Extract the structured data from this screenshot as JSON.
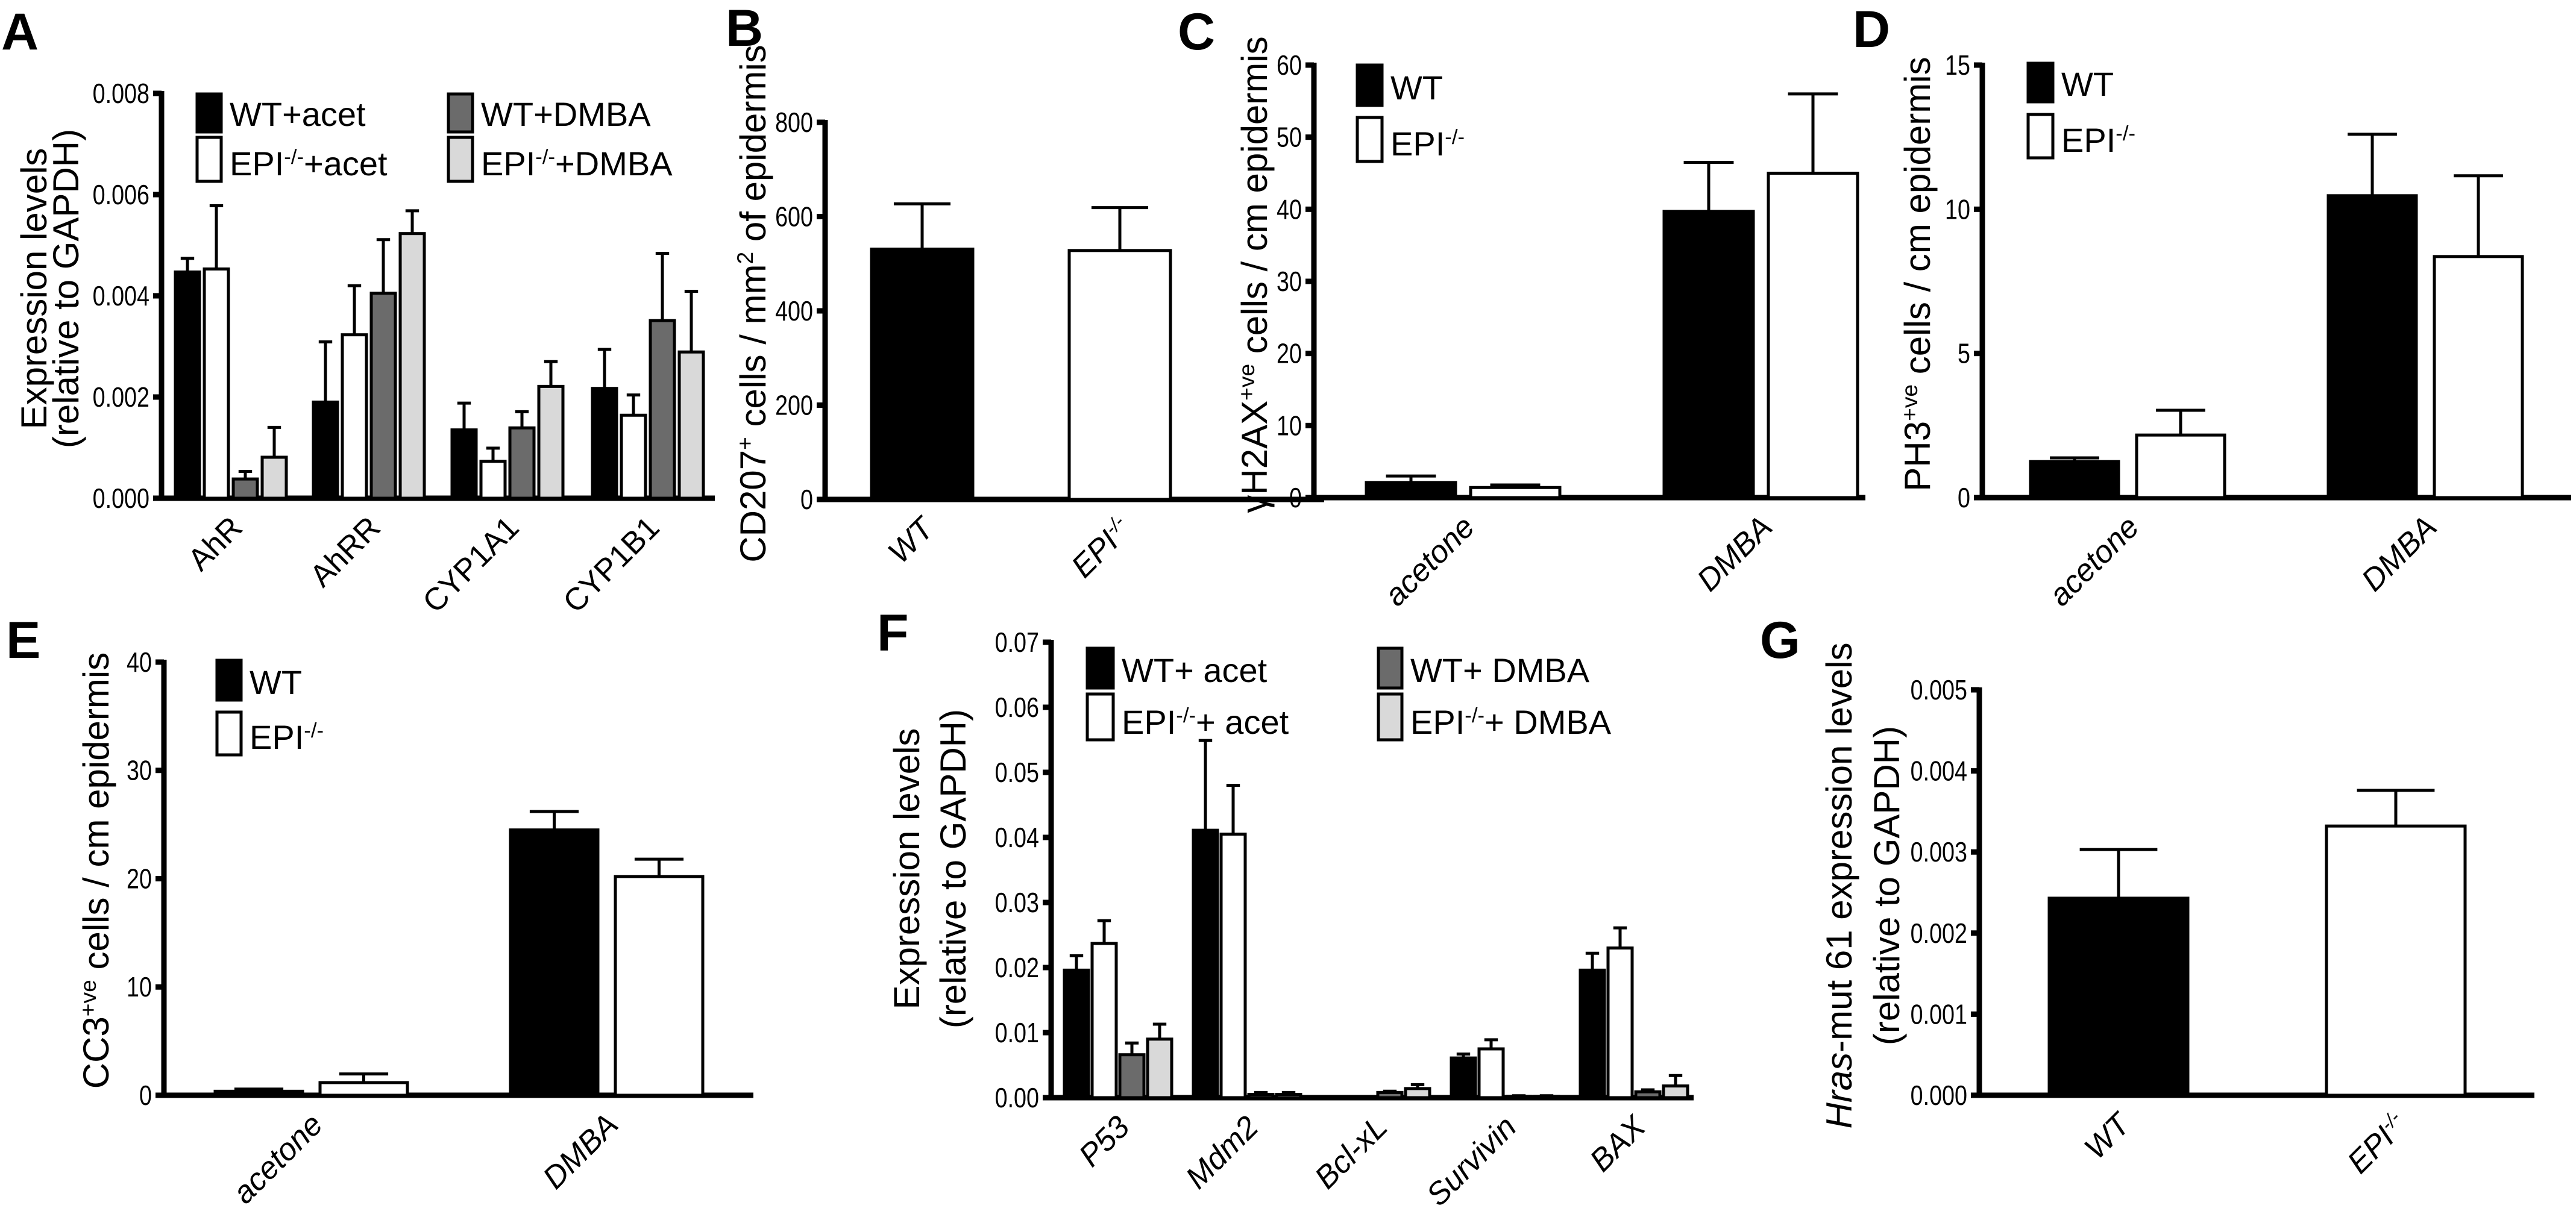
{
  "chart_data": [
    {
      "panel": "A",
      "type": "bar",
      "categories": [
        "AhR",
        "AhRR",
        "CYP1A1",
        "CYP1B1"
      ],
      "ylabel": [
        "Expression levels",
        "(relative to GAPDH)"
      ],
      "ylim": [
        0,
        0.008
      ],
      "yticks": [
        "0.000",
        "0.002",
        "0.004",
        "0.006",
        "0.008"
      ],
      "grid": false,
      "legend": "top",
      "series": [
        {
          "name": "WT+acet",
          "fill": "#000000",
          "values": [
            0.00447,
            0.0019,
            0.00135,
            0.00217
          ],
          "sem": [
            0.00027,
            0.00119,
            0.00053,
            0.00077
          ]
        },
        {
          "name": "EPI^{-/-}+acet",
          "fill": "#ffffff",
          "values": [
            0.00453,
            0.00323,
            0.00073,
            0.00164
          ],
          "sem": [
            0.00125,
            0.00097,
            0.00026,
            0.0004
          ]
        },
        {
          "name": "WT+DMBA",
          "fill": "#6b6b6b",
          "values": [
            0.00038,
            0.00405,
            0.00139,
            0.00351
          ],
          "sem": [
            0.00015,
            0.00106,
            0.00032,
            0.00133
          ]
        },
        {
          "name": "EPI^{-/-}+DMBA",
          "fill": "#d9d9d9",
          "values": [
            0.00081,
            0.00523,
            0.00221,
            0.00289
          ],
          "sem": [
            0.00059,
            0.00045,
            0.00049,
            0.0012
          ]
        }
      ]
    },
    {
      "panel": "B",
      "type": "bar",
      "categories": [
        "WT",
        "EPI^{-/-}"
      ],
      "ylabel": [
        "CD207^{+} cells / mm^{2} of epidermis"
      ],
      "ylim": [
        0,
        800
      ],
      "yticks": [
        "0",
        "200",
        "400",
        "600",
        "800"
      ],
      "grid": false,
      "series": [
        {
          "colors": [
            "#000000",
            "#ffffff"
          ],
          "values": [
            531,
            528
          ],
          "sem": [
            96,
            91
          ]
        }
      ]
    },
    {
      "panel": "C",
      "type": "bar",
      "categories": [
        "acetone",
        "DMBA"
      ],
      "ylabel": [
        "γH2AX^{+ve} cells / cm epidermis"
      ],
      "ylim": [
        0,
        60
      ],
      "yticks": [
        "0",
        "10",
        "20",
        "30",
        "40",
        "50",
        "60"
      ],
      "grid": false,
      "legend": "top-left",
      "series": [
        {
          "name": "WT",
          "fill": "#000000",
          "values": [
            2.1,
            39.7
          ],
          "sem": [
            0.9,
            6.8
          ]
        },
        {
          "name": "EPI^{-/-}",
          "fill": "#ffffff",
          "values": [
            1.4,
            45.0
          ],
          "sem": [
            0.36,
            11.0
          ]
        }
      ]
    },
    {
      "panel": "D",
      "type": "bar",
      "categories": [
        "acetone",
        "DMBA"
      ],
      "ylabel": [
        "PH3^{+ve} cells / cm epidermis"
      ],
      "ylim": [
        0,
        15
      ],
      "yticks": [
        "0",
        "5",
        "10",
        "15"
      ],
      "grid": false,
      "legend": "top-left",
      "series": [
        {
          "name": "WT",
          "fill": "#000000",
          "values": [
            1.25,
            10.47
          ],
          "sem": [
            0.13,
            2.13
          ]
        },
        {
          "name": "EPI^{-/-}",
          "fill": "#ffffff",
          "values": [
            2.17,
            8.36
          ],
          "sem": [
            0.86,
            2.8
          ]
        }
      ]
    },
    {
      "panel": "E",
      "type": "bar",
      "categories": [
        "acetone",
        "DMBA"
      ],
      "ylabel": [
        "CC3^{+ve} cells / cm epidermis"
      ],
      "ylim": [
        0,
        40
      ],
      "yticks": [
        "0",
        "10",
        "20",
        "30",
        "40"
      ],
      "grid": false,
      "legend": "top-left",
      "series": [
        {
          "name": "WT",
          "fill": "#000000",
          "values": [
            0.37,
            24.5
          ],
          "sem": [
            0.2,
            1.7
          ]
        },
        {
          "name": "EPI^{-/-}",
          "fill": "#ffffff",
          "values": [
            1.17,
            20.2
          ],
          "sem": [
            0.8,
            1.6
          ]
        }
      ]
    },
    {
      "panel": "F",
      "type": "bar",
      "categories": [
        "P53",
        "Mdm2",
        "Bcl-xL",
        "Survivin",
        "BAX"
      ],
      "ylabel": [
        "Expression levels",
        "(relative to GAPDH)"
      ],
      "ylim": [
        0,
        0.07
      ],
      "yticks": [
        "0.00",
        "0.01",
        "0.02",
        "0.03",
        "0.04",
        "0.05",
        "0.06",
        "0.07"
      ],
      "grid": false,
      "legend": "top",
      "series": [
        {
          "name": "WT+ acet",
          "fill": "#000000",
          "values": [
            0.0196,
            0.0411,
            0.0,
            0.0061,
            0.0196
          ],
          "sem": [
            0.0022,
            0.0138,
            0.0,
            0.0006,
            0.0026
          ]
        },
        {
          "name": "EPI^{-/-}+ acet",
          "fill": "#ffffff",
          "values": [
            0.0237,
            0.0405,
            0.0,
            0.0075,
            0.023
          ],
          "sem": [
            0.0035,
            0.0075,
            0.0,
            0.0014,
            0.0031
          ]
        },
        {
          "name": "WT+ DMBA",
          "fill": "#6b6b6b",
          "values": [
            0.0066,
            0.0005,
            0.0008,
            0.0002,
            0.0009
          ],
          "sem": [
            0.0018,
            0.0003,
            0.0002,
            0.0001,
            0.0003
          ]
        },
        {
          "name": "EPI^{-/-}+ DMBA",
          "fill": "#d9d9d9",
          "values": [
            0.009,
            0.0005,
            0.0014,
            0.0002,
            0.0018
          ],
          "sem": [
            0.0023,
            0.0003,
            0.0006,
            0.0001,
            0.0016
          ]
        }
      ]
    },
    {
      "panel": "G",
      "type": "bar",
      "categories": [
        "WT",
        "EPI^{-/-}"
      ],
      "ylabel": [
        "*Hras*-mut 61 expression levels",
        "(relative to GAPDH)"
      ],
      "ylim": [
        0,
        0.005
      ],
      "yticks": [
        "0.000",
        "0.001",
        "0.002",
        "0.003",
        "0.004",
        "0.005"
      ],
      "grid": false,
      "series": [
        {
          "colors": [
            "#000000",
            "#ffffff"
          ],
          "values": [
            0.00243,
            0.00332
          ],
          "sem": [
            0.0006,
            0.00044
          ]
        }
      ]
    }
  ]
}
